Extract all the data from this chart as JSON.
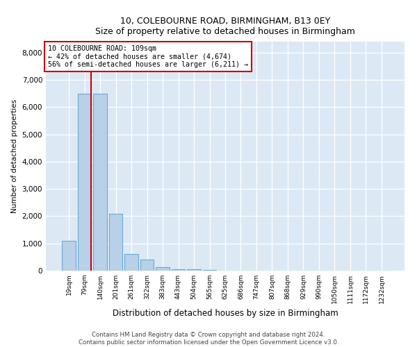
{
  "title_line1": "10, COLEBOURNE ROAD, BIRMINGHAM, B13 0EY",
  "title_line2": "Size of property relative to detached houses in Birmingham",
  "xlabel": "Distribution of detached houses by size in Birmingham",
  "ylabel": "Number of detached properties",
  "footer_line1": "Contains HM Land Registry data © Crown copyright and database right 2024.",
  "footer_line2": "Contains public sector information licensed under the Open Government Licence v3.0.",
  "annotation_line1": "10 COLEBOURNE ROAD: 109sqm",
  "annotation_line2": "← 42% of detached houses are smaller (4,674)",
  "annotation_line3": "56% of semi-detached houses are larger (6,211) →",
  "bar_color": "#b8d0e8",
  "bar_edge_color": "#6aaad4",
  "vline_color": "#cc0000",
  "background_color": "#dce9f5",
  "categories": [
    "19sqm",
    "79sqm",
    "140sqm",
    "201sqm",
    "261sqm",
    "322sqm",
    "383sqm",
    "443sqm",
    "504sqm",
    "565sqm",
    "625sqm",
    "686sqm",
    "747sqm",
    "807sqm",
    "868sqm",
    "929sqm",
    "990sqm",
    "1050sqm",
    "1111sqm",
    "1172sqm",
    "1232sqm"
  ],
  "values": [
    1100,
    6500,
    6500,
    2100,
    620,
    400,
    140,
    55,
    45,
    20,
    0,
    0,
    0,
    0,
    0,
    0,
    0,
    0,
    0,
    0,
    0
  ],
  "ylim": [
    0,
    8400
  ],
  "yticks": [
    0,
    1000,
    2000,
    3000,
    4000,
    5000,
    6000,
    7000,
    8000
  ],
  "vline_x_index": 1.42
}
